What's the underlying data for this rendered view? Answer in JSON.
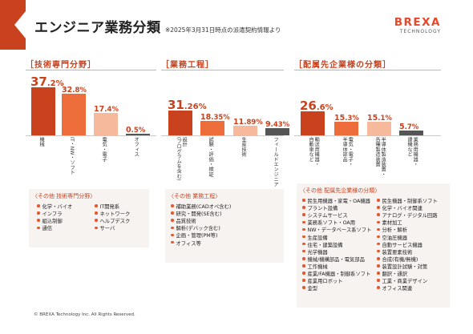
{
  "header": {
    "title": "エンジニア業務分類",
    "subtitle": "※2025年3月31日時点の派遣契約情報より",
    "logo_text": "BREXA",
    "logo_sub": "TECHNOLOGY"
  },
  "colors": {
    "accent": "#c9421d",
    "bar_dark": "#c9421d",
    "bar_mid": "#ec6c3a",
    "bar_light": "#f6b99b",
    "bar_gray": "#555555",
    "box_bg": "#f6f3f1"
  },
  "sections": [
    {
      "heading": "［技術専門分野］",
      "bars": [
        {
          "label": "機械",
          "int": "37",
          "dec": ".2%",
          "value": 37.2
        },
        {
          "label": "IT・NW・ソフト",
          "int": "32",
          "dec": ".8%",
          "value": 32.8
        },
        {
          "label": "電気・電子",
          "int": "17",
          "dec": ".4%",
          "value": 17.4
        },
        {
          "label": "オフィス",
          "int": "0",
          "dec": ".5%",
          "value": 0.5
        }
      ],
      "other_title": "〈その他 技術専門分野〉",
      "other_items": [
        "化学・バイオ",
        "インフラ",
        "組込制御",
        "通信",
        "IT開発系",
        "ネットワーク",
        "ヘルプデスク",
        "サーバ"
      ]
    },
    {
      "heading": "［業務工程］",
      "bars": [
        {
          "label": "設計\n(プログラムを含む)",
          "int": "31",
          "dec": ".26%",
          "value": 31.26
        },
        {
          "label": "試験・評価・検証",
          "int": "18",
          "dec": ".35%",
          "value": 18.35
        },
        {
          "label": "生産技術",
          "int": "11",
          "dec": ".89%",
          "value": 11.89
        },
        {
          "label": "フィールドエンジニア",
          "int": "9",
          "dec": ".43%",
          "value": 9.43
        }
      ],
      "other_title": "〈その他 業務工程〉",
      "other_items": [
        "補助業務(CADオペ含む)",
        "研究・開発(SE含む)",
        "品質技術",
        "解析(デバック含む)",
        "企画・管理(PM等)",
        "オフィス等"
      ]
    },
    {
      "heading": "［配属先企業様の分類］",
      "bars": [
        {
          "label": "輸送用機器・\n自動車など",
          "int": "26",
          "dec": ".6%",
          "value": 26.6
        },
        {
          "label": "電気・電子・\n半導体部品",
          "int": "15",
          "dec": ".3%",
          "value": 15.3
        },
        {
          "label": "半導体製造装置・\n各種製造装置",
          "int": "15",
          "dec": ".1%",
          "value": 15.1
        },
        {
          "label": "業務用機器・\n建機など",
          "int": "5",
          "dec": ".7%",
          "value": 5.7
        }
      ],
      "other_title": "〈その他 配属先企業様の分類〉",
      "other_items": [
        "民生用機器・家電・OA機器",
        "プラント設備",
        "システムサービス",
        "業務系ソフト・OA用",
        "NW・データベース系ソフト",
        "生産設備",
        "住宅・建築設備",
        "光学機器",
        "機械/機構部品・電気部品",
        "工作機械",
        "産業/FA機器・制御系ソフト",
        "産業用ロボット",
        "金型",
        "民生機器・制御系ソフト",
        "化学・バイオ関連",
        "アナログ・デジタル回路",
        "素材加工",
        "分析・解析",
        "空油圧機器",
        "自動サービス機器",
        "装置要素技術",
        "合成(有機/無機)",
        "装置設計試験・対策",
        "翻訳・通訳",
        "工業・商業デザイン",
        "オフィス関連"
      ]
    }
  ],
  "footer": "© BREXA Technology Inc. All Rights Reserved."
}
